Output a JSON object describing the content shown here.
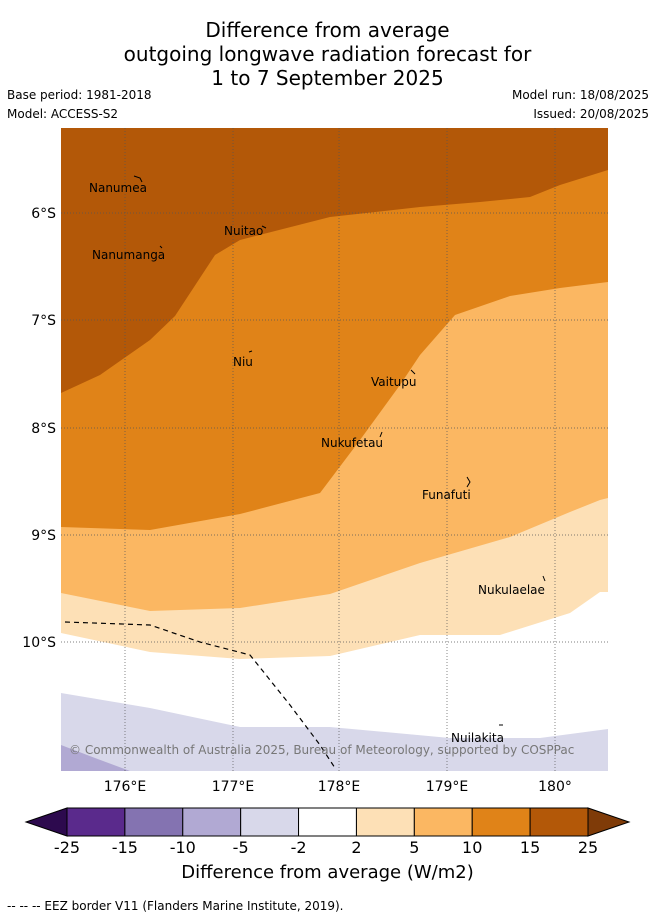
{
  "title": {
    "line1": "Difference from average",
    "line2": "outgoing longwave radiation forecast for",
    "line3": "1 to 7 September 2025"
  },
  "meta": {
    "base_period": "Base period: 1981-2018",
    "model": "Model: ACCESS-S2",
    "model_run": "Model run: 18/08/2025",
    "issued": "Issued: 20/08/2025"
  },
  "map": {
    "lon_labels": [
      "176°E",
      "177°E",
      "178°E",
      "179°E",
      "180°"
    ],
    "lat_labels": [
      "6°S",
      "7°S",
      "8°S",
      "9°S",
      "10°S"
    ],
    "places": [
      "Nanumea",
      "Nuitao",
      "Nanumanga",
      "Niu",
      "Vaitupu",
      "Nukufetau",
      "Funafuti",
      "Nukulaelae",
      "Nuilakita"
    ],
    "copyright": "© Commonwealth of Australia 2025, Bureau of Meteorology, supported by COSPPac"
  },
  "colorbar": {
    "ticks": [
      "-25",
      "-15",
      "-10",
      "-5",
      "-2",
      "2",
      "5",
      "10",
      "15",
      "25"
    ],
    "colors": [
      "#2d0a4e",
      "#5a2a8c",
      "#8473b1",
      "#b1a9d3",
      "#d8d8ea",
      "#ffffff",
      "#fde0b6",
      "#fbb762",
      "#e08318",
      "#b35808",
      "#7f3b08"
    ],
    "title": "Difference from average (W/m2)"
  },
  "legend": {
    "eez": "--  --  -- EEZ border V11 (Flanders Marine Institute, 2019)."
  }
}
